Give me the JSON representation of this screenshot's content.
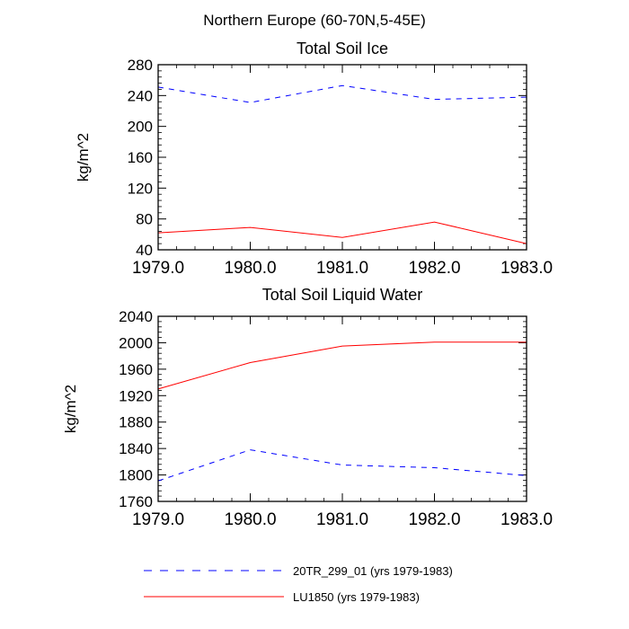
{
  "figure_title": "Northern Europe (60-70N,5-45E)",
  "chart_data": [
    {
      "type": "line",
      "title": "Total Soil Ice",
      "xlabel": "",
      "ylabel": "kg/m^2",
      "x": [
        1979.0,
        1980.0,
        1981.0,
        1982.0,
        1983.0
      ],
      "xticks": [
        1979.0,
        1980.0,
        1981.0,
        1982.0,
        1983.0
      ],
      "xtick_labels": [
        "1979.0",
        "1980.0",
        "1981.0",
        "1982.0",
        "1983.0"
      ],
      "xlim": [
        1979.0,
        1983.0
      ],
      "ylim": [
        40,
        280
      ],
      "yticks": [
        40,
        80,
        120,
        160,
        200,
        240,
        280
      ],
      "ytick_labels": [
        "40",
        "80",
        "120",
        "160",
        "200",
        "240",
        "280"
      ],
      "series": [
        {
          "name": "20TR_299_01 (yrs 1979-1983)",
          "values": [
            251,
            231,
            253,
            235,
            238
          ],
          "color": "#0000ff",
          "dash": "dashed"
        },
        {
          "name": "LU1850 (yrs 1979-1983)",
          "values": [
            62,
            69,
            56,
            76,
            48
          ],
          "color": "#ff0000",
          "dash": "solid"
        }
      ]
    },
    {
      "type": "line",
      "title": "Total Soil Liquid Water",
      "xlabel": "",
      "ylabel": "kg/m^2",
      "x": [
        1979.0,
        1980.0,
        1981.0,
        1982.0,
        1983.0
      ],
      "xticks": [
        1979.0,
        1980.0,
        1981.0,
        1982.0,
        1983.0
      ],
      "xtick_labels": [
        "1979.0",
        "1980.0",
        "1981.0",
        "1982.0",
        "1983.0"
      ],
      "xlim": [
        1979.0,
        1983.0
      ],
      "ylim": [
        1760,
        2040
      ],
      "yticks": [
        1760,
        1800,
        1840,
        1880,
        1920,
        1960,
        2000,
        2040
      ],
      "ytick_labels": [
        "1760",
        "1800",
        "1840",
        "1880",
        "1920",
        "1960",
        "2000",
        "2040"
      ],
      "series": [
        {
          "name": "20TR_299_01 (yrs 1979-1983)",
          "values": [
            1791,
            1838,
            1815,
            1811,
            1799
          ],
          "color": "#0000ff",
          "dash": "dashed"
        },
        {
          "name": "LU1850 (yrs 1979-1983)",
          "values": [
            1930,
            1970,
            1995,
            2001,
            2001
          ],
          "color": "#ff0000",
          "dash": "solid"
        }
      ]
    }
  ],
  "legend": {
    "placement": "bottom-center",
    "items": [
      {
        "label": "20TR_299_01 (yrs 1979-1983)",
        "color": "#0000ff",
        "dash": "dashed"
      },
      {
        "label": "LU1850 (yrs 1979-1983)",
        "color": "#ff0000",
        "dash": "solid"
      }
    ]
  }
}
